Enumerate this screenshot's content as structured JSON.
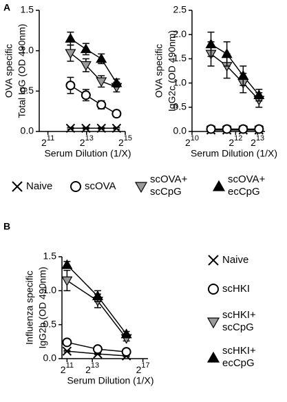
{
  "chart_data": [
    {
      "type": "line",
      "panel": "A",
      "xlabel": "Serum Dilution (1/X)",
      "ylabel": [
        "OVA specific",
        "Total IgG (OD 490nm)"
      ],
      "xscale": "log2",
      "xlim": [
        1500,
        32768
      ],
      "xticks": [
        {
          "value": 2048,
          "label": "2^11"
        },
        {
          "value": 8192,
          "label": "2^13"
        },
        {
          "value": 32768,
          "label": "2^15"
        }
      ],
      "ylim": [
        0,
        1.5
      ],
      "yticks": [
        {
          "value": 0,
          "label": "0.0"
        },
        0.5,
        {
          "value": 1,
          "label": "1.0"
        },
        1.5
      ],
      "legend": "below",
      "x": [
        4600,
        8000,
        13900,
        24000
      ],
      "series": [
        {
          "name": "Naive",
          "marker": "x",
          "color": "#000000",
          "values": [
            0.04,
            0.04,
            0.04,
            0.04
          ],
          "errors": [
            0.01,
            0.01,
            0.01,
            0.01
          ]
        },
        {
          "name": "scOVA",
          "marker": "circle",
          "color": "#ffffff",
          "values": [
            0.57,
            0.45,
            0.33,
            0.22
          ],
          "errors": [
            0.1,
            0.07,
            0.05,
            0.04
          ]
        },
        {
          "name": "scOVA+ scCpG",
          "marker": "tri-down",
          "color": "#9a9a9a",
          "values": [
            0.97,
            0.82,
            0.62,
            0.55
          ],
          "errors": [
            0.1,
            0.08,
            0.07,
            0.06
          ]
        },
        {
          "name": "scOVA+ ecCpG",
          "marker": "tri-up",
          "color": "#000000",
          "values": [
            1.15,
            1.02,
            0.9,
            0.6
          ],
          "errors": [
            0.08,
            0.07,
            0.06,
            0.05
          ]
        }
      ]
    },
    {
      "type": "line",
      "xlabel": "Serum Dilution (1/X)",
      "ylabel": [
        "OVA specific",
        "IgG2c (OD 490nm)"
      ],
      "xscale": "log2",
      "xlim": [
        1024,
        10400
      ],
      "xticks": [
        {
          "value": 1024,
          "label": "2^10"
        },
        {
          "value": 4096,
          "label": "2^12"
        },
        {
          "value": 8192,
          "label": "2^13"
        }
      ],
      "ylim": [
        0,
        2.5
      ],
      "yticks": [
        {
          "value": 0,
          "label": "0.0"
        },
        0.5,
        {
          "value": 1,
          "label": "1.0"
        },
        1.5,
        {
          "value": 2,
          "label": "2.0"
        },
        2.5
      ],
      "x": [
        1870,
        3100,
        5200,
        8600
      ],
      "series": [
        {
          "marker": "x",
          "color": "#000000",
          "values": [
            0.03,
            0.03,
            0.03,
            0.03
          ],
          "errors": [
            0.01,
            0.01,
            0.01,
            0.01
          ]
        },
        {
          "marker": "circle",
          "color": "#ffffff",
          "values": [
            0.05,
            0.05,
            0.05,
            0.05
          ],
          "errors": [
            0.02,
            0.02,
            0.02,
            0.02
          ]
        },
        {
          "marker": "tri-down",
          "color": "#9a9a9a",
          "values": [
            1.6,
            1.35,
            1.0,
            0.65
          ],
          "errors": [
            0.25,
            0.25,
            0.2,
            0.15
          ]
        },
        {
          "marker": "tri-up",
          "color": "#000000",
          "values": [
            1.8,
            1.6,
            1.15,
            0.75
          ],
          "errors": [
            0.25,
            0.25,
            0.2,
            0.12
          ]
        }
      ]
    },
    {
      "type": "line",
      "panel": "B",
      "xlabel": "Serum Dilution (1/X)",
      "ylabel": [
        "Influenza specific",
        "IgG2b (OD 490nm)"
      ],
      "xscale": "log2",
      "xlim": [
        1550,
        173000
      ],
      "xticks": [
        {
          "value": 2048,
          "label": "2^11"
        },
        {
          "value": 8192,
          "label": "2^13"
        },
        {
          "value": 131072,
          "label": "2^17"
        }
      ],
      "ylim": [
        0,
        1.5
      ],
      "yticks": [
        {
          "value": 0,
          "label": "0.0"
        },
        0.5,
        {
          "value": 1,
          "label": "1.0"
        },
        1.5
      ],
      "legend": "right",
      "x": [
        2048,
        11000,
        53000
      ],
      "series": [
        {
          "name": "Naive",
          "marker": "x",
          "color": "#000000",
          "values": [
            0.11,
            0.07,
            0.04
          ],
          "errors": [
            0.01,
            0.01,
            0.01
          ]
        },
        {
          "name": "scHKI",
          "marker": "circle",
          "color": "#ffffff",
          "values": [
            0.24,
            0.14,
            0.1
          ],
          "errors": [
            0.03,
            0.02,
            0.02
          ]
        },
        {
          "name": "scHKI+ scCpG",
          "marker": "tri-down",
          "color": "#9a9a9a",
          "values": [
            1.15,
            0.85,
            0.3
          ],
          "errors": [
            0.15,
            0.1,
            0.04
          ]
        },
        {
          "name": "scHKI+ ecCpG",
          "marker": "tri-up",
          "color": "#000000",
          "values": [
            1.38,
            0.92,
            0.36
          ],
          "errors": [
            0.05,
            0.08,
            0.04
          ]
        }
      ]
    }
  ]
}
